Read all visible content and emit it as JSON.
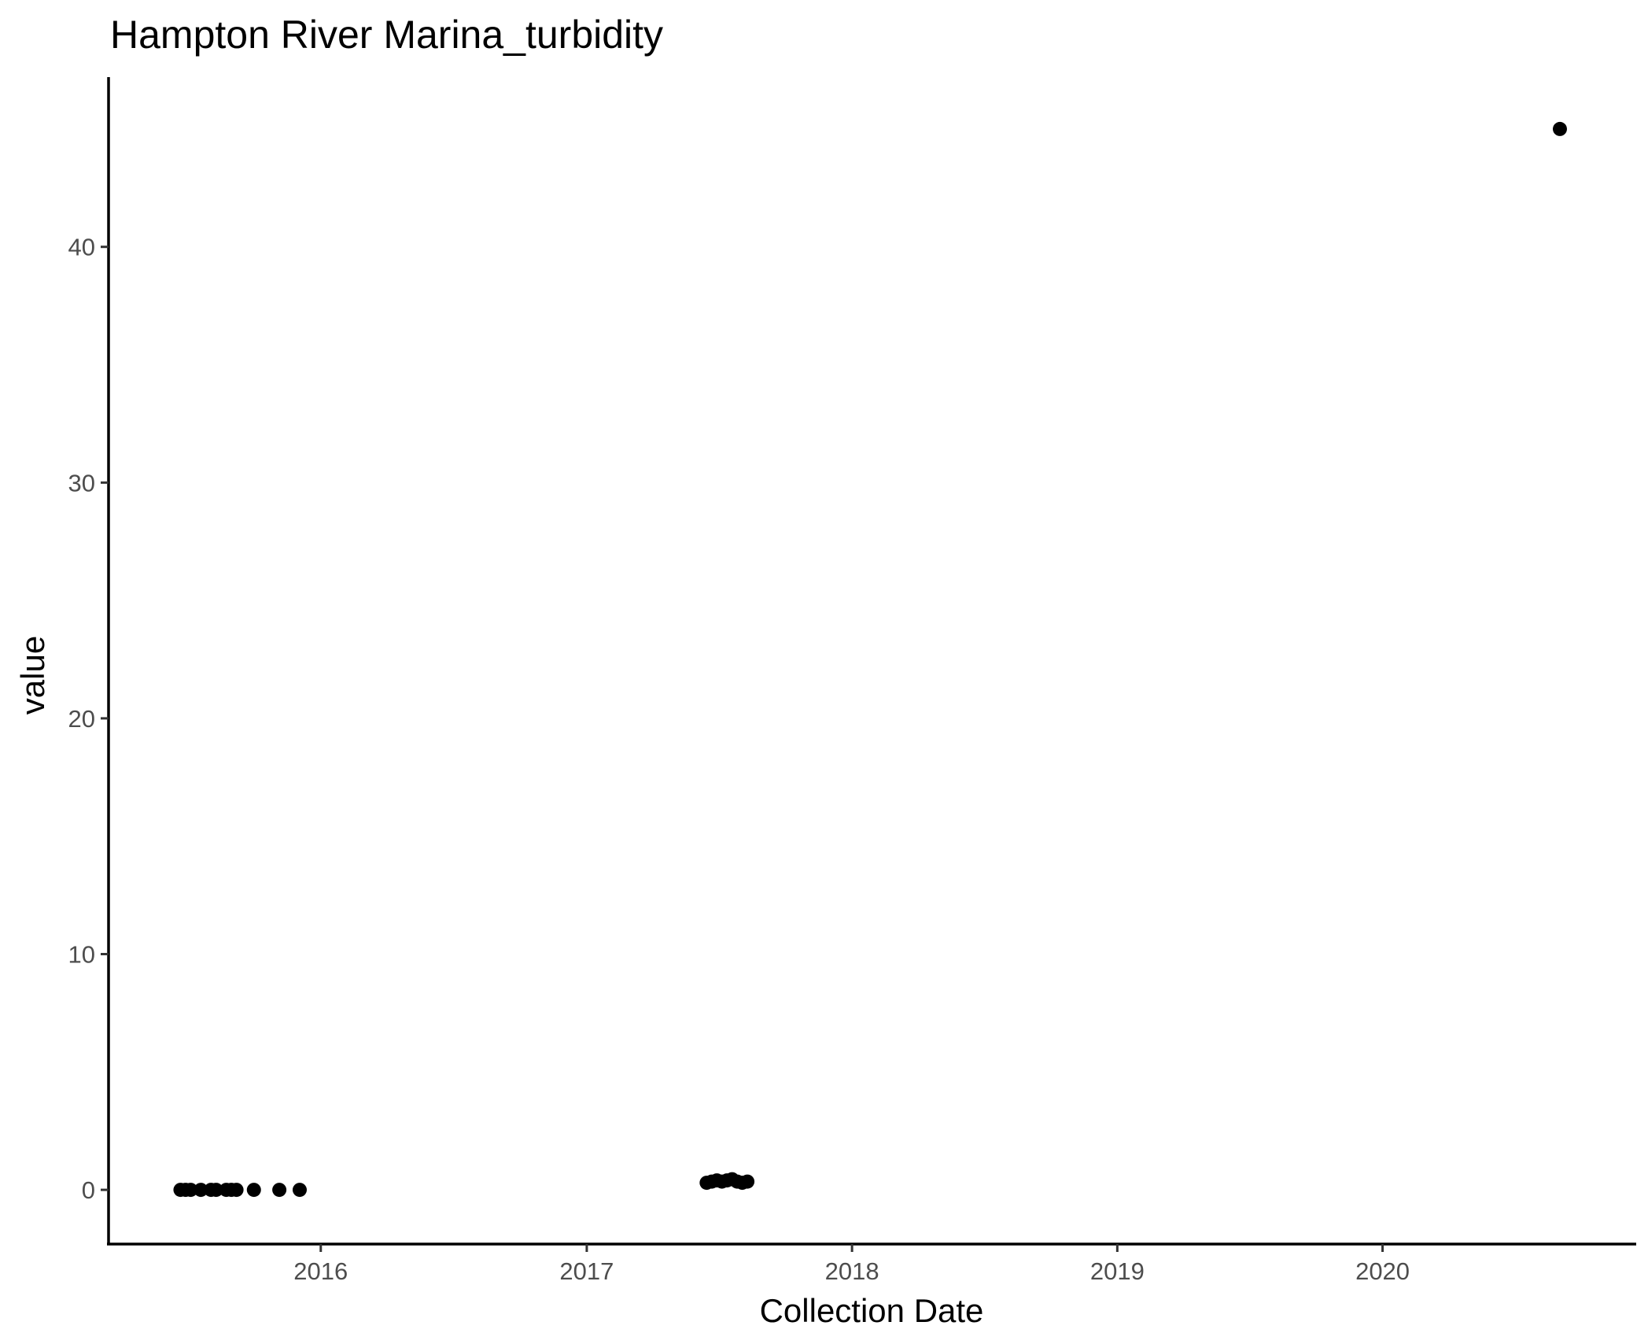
{
  "chart_data": {
    "type": "scatter",
    "title": "Hampton River Marina_turbidity",
    "xlabel": "Collection Date",
    "ylabel": "value",
    "x_is_date": true,
    "xlim": [
      "2015-03-15",
      "2020-12-15"
    ],
    "ylim": [
      -2.3,
      47.2
    ],
    "x_ticks": [
      {
        "label": "2016",
        "value": "2016-01-01"
      },
      {
        "label": "2017",
        "value": "2017-01-01"
      },
      {
        "label": "2018",
        "value": "2018-01-01"
      },
      {
        "label": "2019",
        "value": "2019-01-01"
      },
      {
        "label": "2020",
        "value": "2020-01-01"
      }
    ],
    "y_ticks": [
      0,
      10,
      20,
      30,
      40
    ],
    "grid": false,
    "legend": "none",
    "point_color": "#000000",
    "points": [
      {
        "x": "2015-06-22",
        "y": 0.0
      },
      {
        "x": "2015-06-29",
        "y": 0.0
      },
      {
        "x": "2015-07-06",
        "y": 0.0
      },
      {
        "x": "2015-07-20",
        "y": 0.0
      },
      {
        "x": "2015-08-03",
        "y": 0.0
      },
      {
        "x": "2015-08-10",
        "y": 0.0
      },
      {
        "x": "2015-08-24",
        "y": 0.0
      },
      {
        "x": "2015-08-31",
        "y": 0.0
      },
      {
        "x": "2015-09-07",
        "y": 0.0
      },
      {
        "x": "2015-10-01",
        "y": 0.0
      },
      {
        "x": "2015-11-05",
        "y": 0.0
      },
      {
        "x": "2015-12-03",
        "y": 0.0
      },
      {
        "x": "2017-06-15",
        "y": 0.3
      },
      {
        "x": "2017-06-22",
        "y": 0.35
      },
      {
        "x": "2017-06-29",
        "y": 0.4
      },
      {
        "x": "2017-07-06",
        "y": 0.35
      },
      {
        "x": "2017-07-13",
        "y": 0.4
      },
      {
        "x": "2017-07-20",
        "y": 0.45
      },
      {
        "x": "2017-07-27",
        "y": 0.35
      },
      {
        "x": "2017-08-03",
        "y": 0.3
      },
      {
        "x": "2017-08-10",
        "y": 0.35
      },
      {
        "x": "2020-09-01",
        "y": 45.0
      }
    ]
  }
}
